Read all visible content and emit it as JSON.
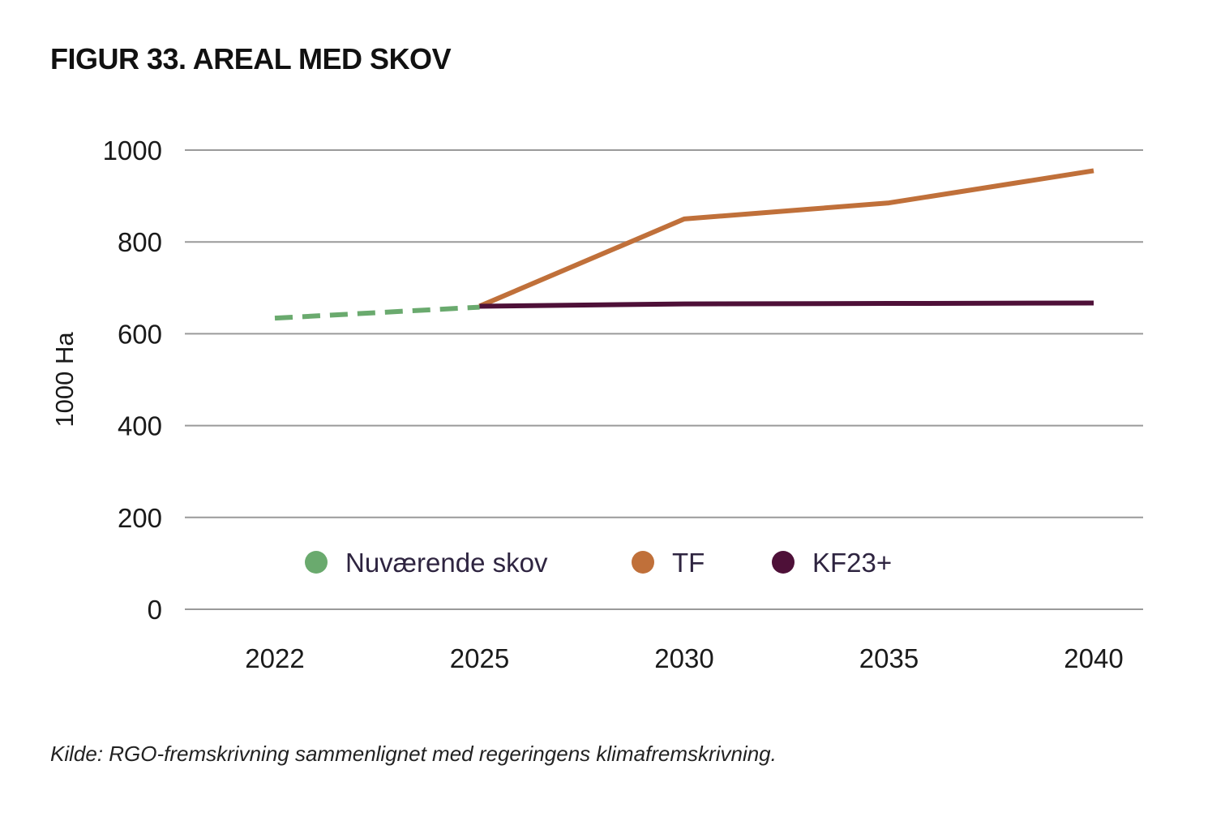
{
  "title": "FIGUR 33. AREAL MED SKOV",
  "source": "Kilde: RGO-fremskrivning sammenlignet med regeringens klimafremskrivning.",
  "chart_data": {
    "type": "line",
    "title": "FIGUR 33. AREAL MED SKOV",
    "xlabel": "",
    "ylabel": "1000 Ha",
    "categories": [
      "2022",
      "2025",
      "2030",
      "2035",
      "2040"
    ],
    "ylim": [
      0,
      1000
    ],
    "yticks": [
      0,
      200,
      400,
      600,
      800,
      1000
    ],
    "grid": true,
    "legend_position": "bottom-center",
    "series": [
      {
        "name": "Nuværende skov",
        "color": "#6aaa6e",
        "style": "dashed",
        "values": [
          634,
          658,
          null,
          null,
          null
        ]
      },
      {
        "name": "TF",
        "color": "#c0703a",
        "style": "solid",
        "values": [
          null,
          660,
          850,
          885,
          955
        ]
      },
      {
        "name": "KF23+",
        "color": "#4e1038",
        "style": "solid",
        "values": [
          null,
          660,
          665,
          666,
          667
        ]
      }
    ]
  }
}
